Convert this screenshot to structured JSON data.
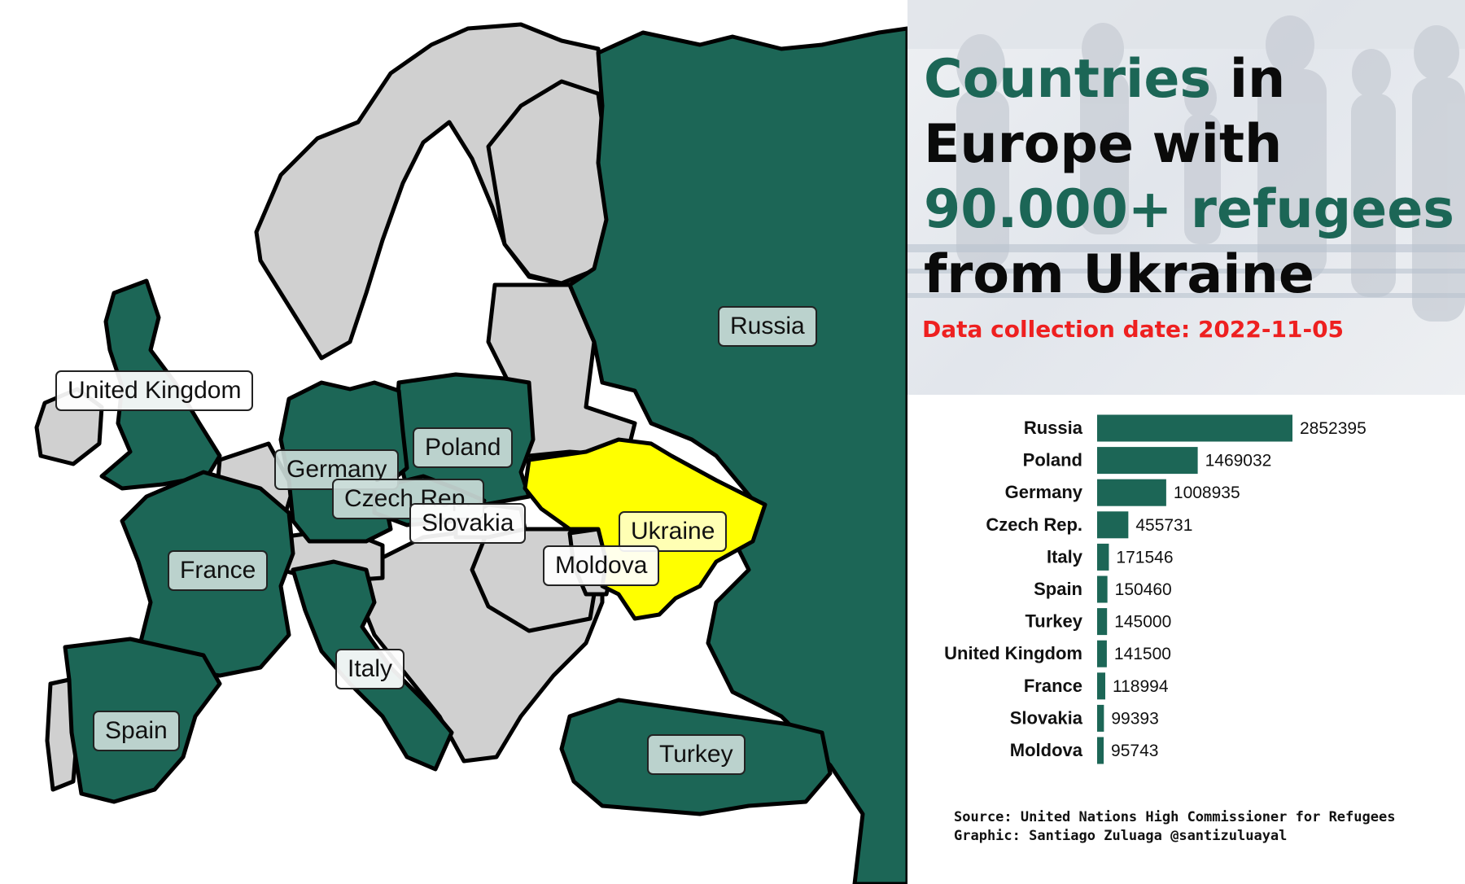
{
  "headline": {
    "part1": "Countries",
    "part2": " in Europe with ",
    "part3": "90.000+ refugees",
    "part4": " from Ukraine"
  },
  "date_line": "Data collection date: 2022-11-05",
  "credits": {
    "source": "Source: United Nations High Commissioner for Refugees",
    "graphic": "Graphic: Santiago Zuluaga @santizuluayal"
  },
  "colors": {
    "host": "#1c6656",
    "other": "#d0d0d0",
    "ukraine": "#ffff00",
    "border": "#000000",
    "title_accent": "#1c6656",
    "date": "#ee2020"
  },
  "map_labels": {
    "russia": "Russia",
    "united_kingdom": "United Kingdom",
    "poland": "Poland",
    "germany": "Germany",
    "czech": "Czech Rep.",
    "slovakia": "Slovakia",
    "ukraine": "Ukraine",
    "moldova": "Moldova",
    "france": "France",
    "italy": "Italy",
    "spain": "Spain",
    "turkey": "Turkey"
  },
  "chart_data": {
    "type": "bar",
    "orientation": "horizontal",
    "categories": [
      "Russia",
      "Poland",
      "Germany",
      "Czech Rep.",
      "Italy",
      "Spain",
      "Turkey",
      "United Kingdom",
      "France",
      "Slovakia",
      "Moldova"
    ],
    "values": [
      2852395,
      1469032,
      1008935,
      455731,
      171546,
      150460,
      145000,
      141500,
      118994,
      99393,
      95743
    ],
    "bar_color": "#1c6656"
  }
}
